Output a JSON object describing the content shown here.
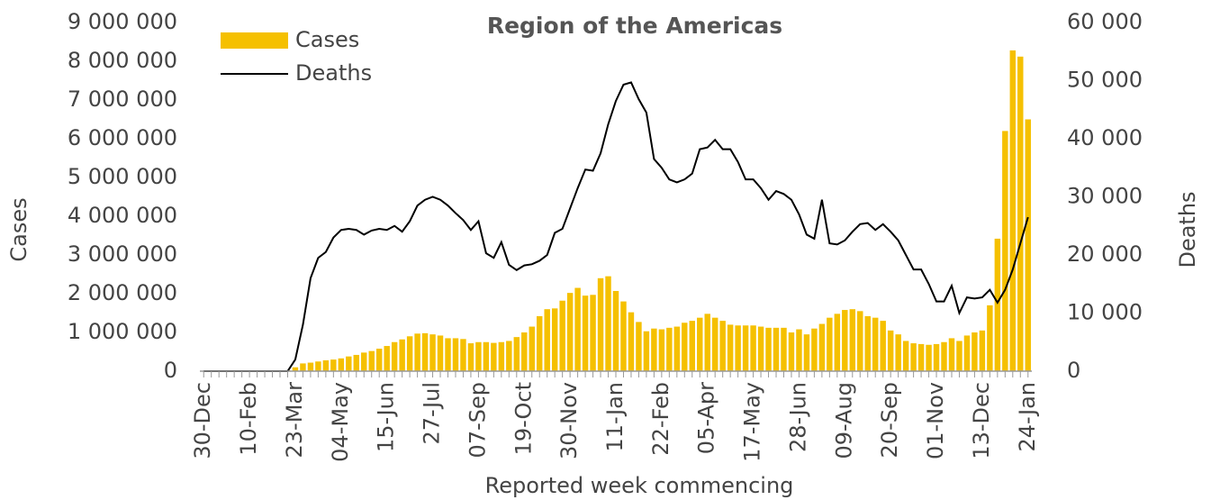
{
  "chart_data": {
    "type": "bar_line",
    "title": "Region of the Americas",
    "x_label": "Reported week commencing",
    "y_label": "Cases",
    "y2_label": "Deaths",
    "legend": "top-left",
    "categories": [
      "30-Dec",
      null,
      null,
      null,
      null,
      null,
      "10-Feb",
      null,
      null,
      null,
      null,
      null,
      "23-Mar",
      null,
      null,
      null,
      null,
      null,
      "04-May",
      null,
      null,
      null,
      null,
      null,
      "15-Jun",
      null,
      null,
      null,
      null,
      null,
      "27-Jul",
      null,
      null,
      null,
      null,
      null,
      "07-Sep",
      null,
      null,
      null,
      null,
      null,
      "19-Oct",
      null,
      null,
      null,
      null,
      null,
      "30-Nov",
      null,
      null,
      null,
      null,
      null,
      "11-Jan",
      null,
      null,
      null,
      null,
      null,
      "22-Feb",
      null,
      null,
      null,
      null,
      null,
      "05-Apr",
      null,
      null,
      null,
      null,
      null,
      "17-May",
      null,
      null,
      null,
      null,
      null,
      "28-Jun",
      null,
      null,
      null,
      null,
      null,
      "09-Aug",
      null,
      null,
      null,
      null,
      null,
      "20-Sep",
      null,
      null,
      null,
      null,
      null,
      "01-Nov",
      null,
      null,
      null,
      null,
      null,
      "13-Dec",
      null,
      null,
      null,
      null,
      null,
      "24-Jan"
    ],
    "series": [
      {
        "name": "Cases",
        "type": "bar",
        "color": "#f5c000",
        "values": [
          0,
          0,
          0,
          0,
          0,
          0,
          0,
          0,
          0,
          0,
          0,
          20000,
          100000,
          200000,
          220000,
          250000,
          280000,
          300000,
          330000,
          380000,
          420000,
          480000,
          520000,
          580000,
          650000,
          750000,
          820000,
          900000,
          970000,
          980000,
          950000,
          920000,
          850000,
          850000,
          830000,
          720000,
          750000,
          750000,
          730000,
          750000,
          780000,
          880000,
          1000000,
          1150000,
          1420000,
          1600000,
          1620000,
          1820000,
          2020000,
          2150000,
          1950000,
          1970000,
          2400000,
          2450000,
          2070000,
          1800000,
          1520000,
          1270000,
          1030000,
          1100000,
          1080000,
          1120000,
          1150000,
          1250000,
          1300000,
          1380000,
          1480000,
          1380000,
          1300000,
          1200000,
          1180000,
          1180000,
          1180000,
          1150000,
          1120000,
          1120000,
          1120000,
          1000000,
          1080000,
          950000,
          1100000,
          1220000,
          1380000,
          1480000,
          1580000,
          1600000,
          1550000,
          1420000,
          1380000,
          1300000,
          1050000,
          950000,
          780000,
          720000,
          700000,
          680000,
          700000,
          750000,
          850000,
          780000,
          920000,
          1000000,
          1050000,
          1700000,
          3420000,
          6200000,
          8280000,
          8120000,
          6500000
        ]
      },
      {
        "name": "Deaths",
        "type": "line",
        "axis": "y2",
        "color": "#000000",
        "values": [
          0,
          0,
          0,
          0,
          0,
          0,
          0,
          0,
          0,
          0,
          0,
          0,
          2000,
          8000,
          16000,
          19500,
          20500,
          23000,
          24300,
          24500,
          24300,
          23500,
          24200,
          24500,
          24300,
          25000,
          24000,
          25800,
          28500,
          29500,
          30000,
          29500,
          28500,
          27200,
          26000,
          24300,
          25800,
          20300,
          19500,
          22200,
          18300,
          17400,
          18200,
          18400,
          19000,
          20000,
          23800,
          24500,
          28000,
          31500,
          34700,
          34500,
          37500,
          42500,
          46500,
          49300,
          49700,
          46800,
          44500,
          36500,
          35000,
          33000,
          32500,
          33000,
          34000,
          38200,
          38500,
          39800,
          38200,
          38200,
          36000,
          33000,
          33000,
          31500,
          29500,
          31000,
          30500,
          29500,
          27000,
          23500,
          22800,
          29500,
          22000,
          21800,
          22500,
          24000,
          25300,
          25500,
          24300,
          25300,
          24000,
          22500,
          20000,
          17500,
          17500,
          15000,
          12000,
          12000,
          14700,
          10000,
          12700,
          12500,
          12700,
          14000,
          11800,
          14000,
          17500,
          22000,
          26500
        ]
      }
    ],
    "ylim": [
      0,
      9000000
    ],
    "yticks": [
      0,
      {
        "value": 1000000,
        "label": "1 000 000"
      },
      {
        "value": 2000000,
        "label": "2 000 000"
      },
      {
        "value": 3000000,
        "label": "3 000 000"
      },
      {
        "value": 4000000,
        "label": "4 000 000"
      },
      {
        "value": 5000000,
        "label": "5 000 000"
      },
      {
        "value": 6000000,
        "label": "6 000 000"
      },
      {
        "value": 7000000,
        "label": "7 000 000"
      },
      {
        "value": 8000000,
        "label": "8 000 000"
      },
      {
        "value": 9000000,
        "label": "9 000 000"
      }
    ],
    "y2lim": [
      0,
      60000
    ],
    "y2ticks": [
      0,
      {
        "value": 10000,
        "label": "10 000"
      },
      {
        "value": 20000,
        "label": "20 000"
      },
      {
        "value": 30000,
        "label": "30 000"
      },
      {
        "value": 40000,
        "label": "40 000"
      },
      {
        "value": 50000,
        "label": "50 000"
      },
      {
        "value": 60000,
        "label": "60 000"
      }
    ],
    "grid": false
  }
}
